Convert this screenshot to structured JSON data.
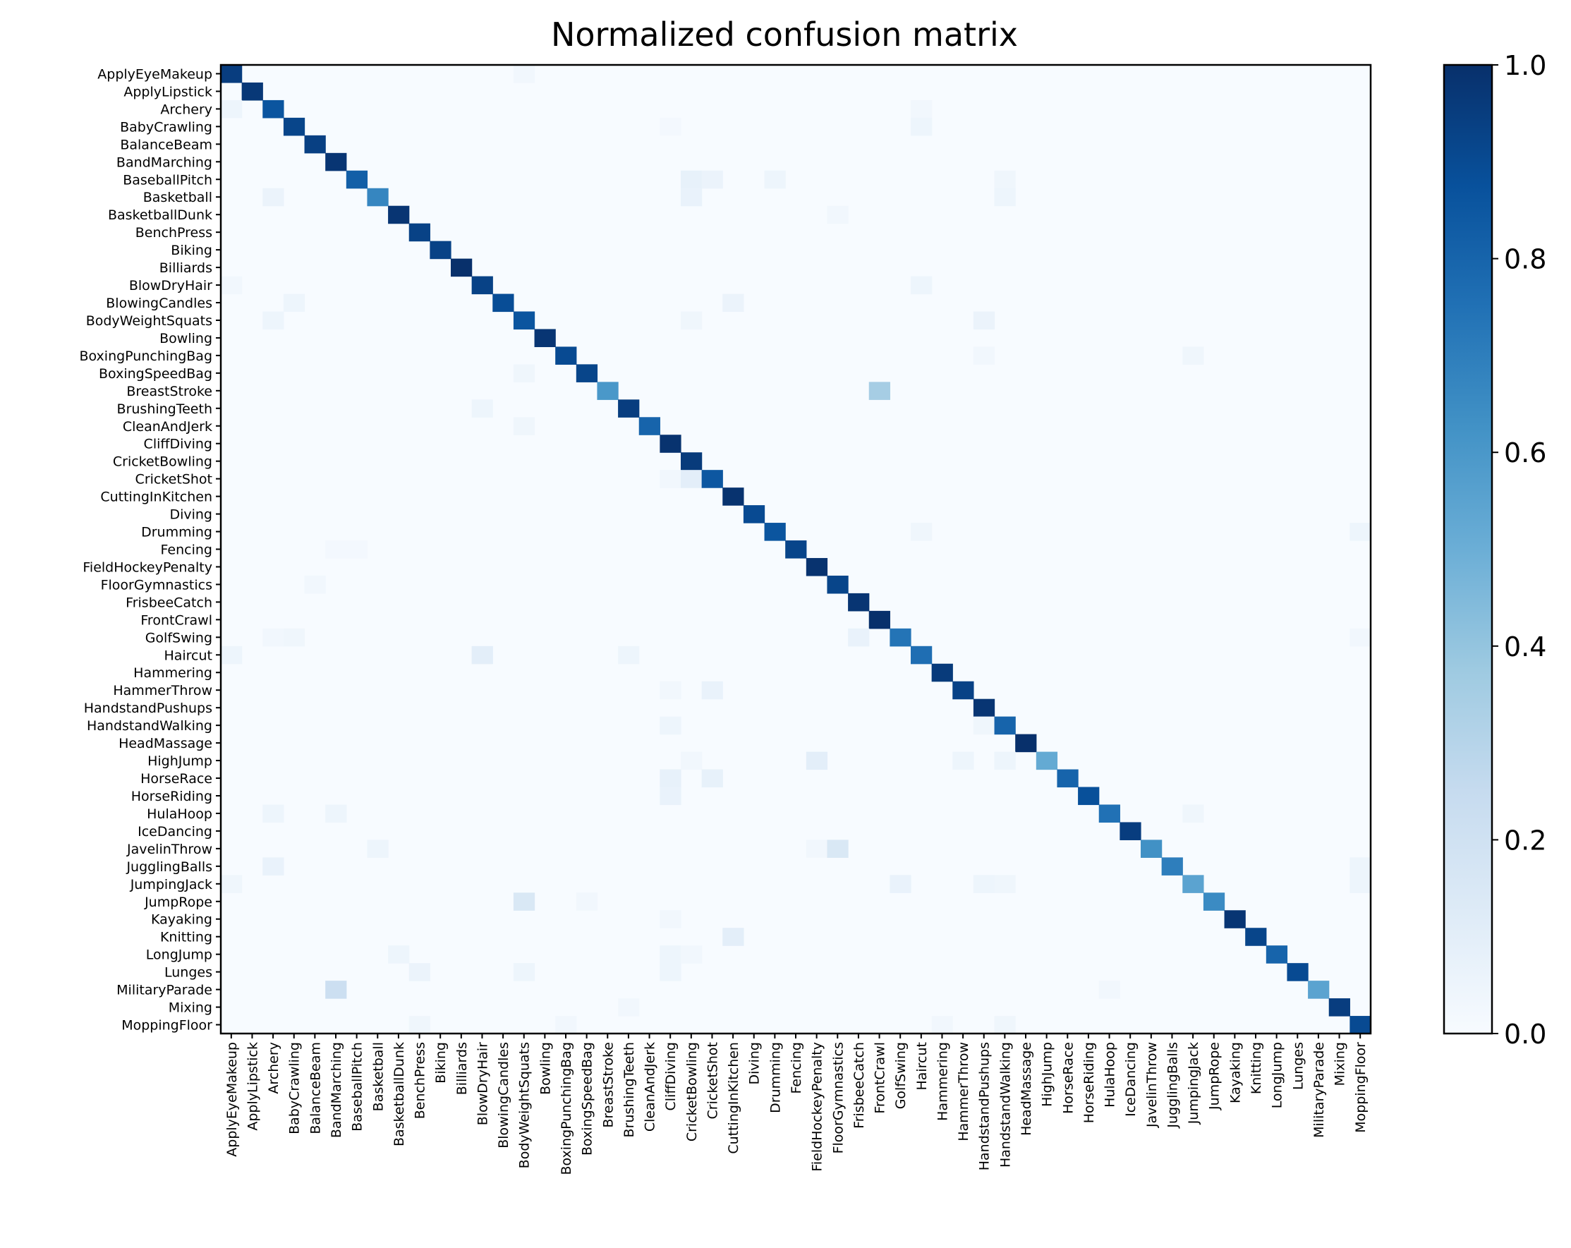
{
  "chart_data": {
    "type": "heatmap",
    "title": "Normalized confusion matrix",
    "xlabel": "",
    "ylabel": "",
    "labels": [
      "ApplyEyeMakeup",
      "ApplyLipstick",
      "Archery",
      "BabyCrawling",
      "BalanceBeam",
      "BandMarching",
      "BaseballPitch",
      "Basketball",
      "BasketballDunk",
      "BenchPress",
      "Biking",
      "Billiards",
      "BlowDryHair",
      "BlowingCandles",
      "BodyWeightSquats",
      "Bowling",
      "BoxingPunchingBag",
      "BoxingSpeedBag",
      "BreastStroke",
      "BrushingTeeth",
      "CleanAndJerk",
      "CliffDiving",
      "CricketBowling",
      "CricketShot",
      "CuttingInKitchen",
      "Diving",
      "Drumming",
      "Fencing",
      "FieldHockeyPenalty",
      "FloorGymnastics",
      "FrisbeeCatch",
      "FrontCrawl",
      "GolfSwing",
      "Haircut",
      "Hammering",
      "HammerThrow",
      "HandstandPushups",
      "HandstandWalking",
      "HeadMassage",
      "HighJump",
      "HorseRace",
      "HorseRiding",
      "HulaHoop",
      "IceDancing",
      "JavelinThrow",
      "JugglingBalls",
      "JumpingJack",
      "JumpRope",
      "Kayaking",
      "Knitting",
      "LongJump",
      "Lunges",
      "MilitaryParade",
      "Mixing",
      "MoppingFloor"
    ],
    "diagonal": [
      0.95,
      0.97,
      0.86,
      0.92,
      0.94,
      0.98,
      0.82,
      0.67,
      0.98,
      0.93,
      0.93,
      1.0,
      0.93,
      0.89,
      0.86,
      0.98,
      0.9,
      0.92,
      0.6,
      0.95,
      0.8,
      0.99,
      0.96,
      0.85,
      0.99,
      0.9,
      0.86,
      0.92,
      0.99,
      0.92,
      0.98,
      1.0,
      0.74,
      0.76,
      0.96,
      0.93,
      0.98,
      0.8,
      1.0,
      0.52,
      0.8,
      0.88,
      0.75,
      0.95,
      0.63,
      0.7,
      0.55,
      0.65,
      0.98,
      0.92,
      0.8,
      0.9,
      0.55,
      0.95,
      0.9
    ],
    "off_diagonal": [
      [
        0,
        14,
        0.03
      ],
      [
        2,
        0,
        0.05
      ],
      [
        2,
        33,
        0.03
      ],
      [
        3,
        33,
        0.05
      ],
      [
        3,
        21,
        0.02
      ],
      [
        6,
        26,
        0.05
      ],
      [
        6,
        22,
        0.08
      ],
      [
        6,
        23,
        0.06
      ],
      [
        6,
        37,
        0.04
      ],
      [
        7,
        2,
        0.06
      ],
      [
        7,
        22,
        0.07
      ],
      [
        7,
        37,
        0.05
      ],
      [
        8,
        29,
        0.03
      ],
      [
        12,
        0,
        0.03
      ],
      [
        12,
        33,
        0.05
      ],
      [
        13,
        3,
        0.05
      ],
      [
        13,
        24,
        0.06
      ],
      [
        14,
        2,
        0.05
      ],
      [
        14,
        36,
        0.06
      ],
      [
        14,
        22,
        0.04
      ],
      [
        16,
        36,
        0.03
      ],
      [
        16,
        46,
        0.04
      ],
      [
        17,
        14,
        0.04
      ],
      [
        18,
        31,
        0.35
      ],
      [
        19,
        12,
        0.05
      ],
      [
        20,
        14,
        0.04
      ],
      [
        23,
        21,
        0.03
      ],
      [
        23,
        22,
        0.1
      ],
      [
        26,
        33,
        0.04
      ],
      [
        26,
        54,
        0.05
      ],
      [
        27,
        5,
        0.02
      ],
      [
        27,
        6,
        0.02
      ],
      [
        29,
        4,
        0.03
      ],
      [
        32,
        2,
        0.03
      ],
      [
        32,
        3,
        0.04
      ],
      [
        32,
        30,
        0.07
      ],
      [
        32,
        54,
        0.03
      ],
      [
        33,
        0,
        0.05
      ],
      [
        33,
        12,
        0.1
      ],
      [
        33,
        19,
        0.05
      ],
      [
        35,
        23,
        0.07
      ],
      [
        35,
        21,
        0.03
      ],
      [
        37,
        21,
        0.05
      ],
      [
        37,
        36,
        0.04
      ],
      [
        39,
        28,
        0.1
      ],
      [
        39,
        35,
        0.05
      ],
      [
        39,
        37,
        0.05
      ],
      [
        39,
        22,
        0.03
      ],
      [
        40,
        21,
        0.08
      ],
      [
        40,
        23,
        0.08
      ],
      [
        41,
        21,
        0.07
      ],
      [
        42,
        2,
        0.05
      ],
      [
        42,
        5,
        0.05
      ],
      [
        42,
        46,
        0.04
      ],
      [
        44,
        7,
        0.05
      ],
      [
        44,
        29,
        0.15
      ],
      [
        44,
        28,
        0.03
      ],
      [
        45,
        2,
        0.07
      ],
      [
        45,
        54,
        0.05
      ],
      [
        46,
        0,
        0.04
      ],
      [
        46,
        32,
        0.07
      ],
      [
        46,
        36,
        0.05
      ],
      [
        46,
        37,
        0.04
      ],
      [
        46,
        54,
        0.05
      ],
      [
        47,
        14,
        0.15
      ],
      [
        47,
        17,
        0.03
      ],
      [
        48,
        21,
        0.03
      ],
      [
        49,
        24,
        0.1
      ],
      [
        50,
        8,
        0.05
      ],
      [
        50,
        21,
        0.05
      ],
      [
        50,
        22,
        0.03
      ],
      [
        51,
        9,
        0.06
      ],
      [
        51,
        14,
        0.05
      ],
      [
        51,
        21,
        0.05
      ],
      [
        52,
        5,
        0.22
      ],
      [
        52,
        42,
        0.03
      ],
      [
        53,
        19,
        0.03
      ],
      [
        54,
        9,
        0.04
      ],
      [
        54,
        16,
        0.03
      ],
      [
        54,
        34,
        0.03
      ],
      [
        54,
        37,
        0.04
      ]
    ],
    "zlim": [
      0,
      1
    ],
    "colormap": "Blues",
    "colorbar_ticks": [
      "0.0",
      "0.2",
      "0.4",
      "0.6",
      "0.8",
      "1.0"
    ],
    "colors": {
      "low": "#f7fbff",
      "high": "#08306b",
      "frame": "#000000"
    }
  }
}
